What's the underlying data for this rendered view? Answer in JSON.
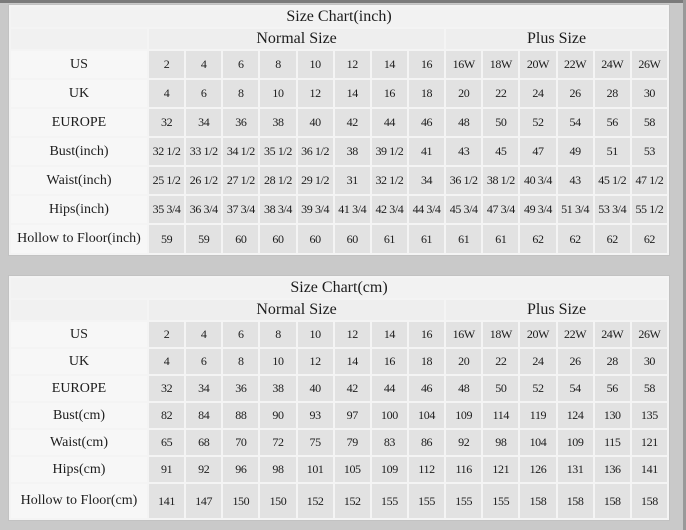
{
  "page": {
    "background_color": "#c9c9c9",
    "frame_line_color": "#7b7b7b",
    "label_cell_color": "#f7f7f7",
    "data_cell_color": "#e2e2e2"
  },
  "chart_data": [
    {
      "type": "table",
      "title": "Size Chart(inch)",
      "column_groups": [
        {
          "label": "Normal Size",
          "span": 8
        },
        {
          "label": "Plus Size",
          "span": 6
        }
      ],
      "rows": [
        {
          "label": "US",
          "values": [
            "2",
            "4",
            "6",
            "8",
            "10",
            "12",
            "14",
            "16",
            "16W",
            "18W",
            "20W",
            "22W",
            "24W",
            "26W"
          ]
        },
        {
          "label": "UK",
          "values": [
            "4",
            "6",
            "8",
            "10",
            "12",
            "14",
            "16",
            "18",
            "20",
            "22",
            "24",
            "26",
            "28",
            "30"
          ]
        },
        {
          "label": "EUROPE",
          "values": [
            "32",
            "34",
            "36",
            "38",
            "40",
            "42",
            "44",
            "46",
            "48",
            "50",
            "52",
            "54",
            "56",
            "58"
          ]
        },
        {
          "label": "Bust(inch)",
          "values": [
            "32 1/2",
            "33 1/2",
            "34 1/2",
            "35 1/2",
            "36 1/2",
            "38",
            "39 1/2",
            "41",
            "43",
            "45",
            "47",
            "49",
            "51",
            "53"
          ]
        },
        {
          "label": "Waist(inch)",
          "values": [
            "25 1/2",
            "26 1/2",
            "27 1/2",
            "28 1/2",
            "29 1/2",
            "31",
            "32 1/2",
            "34",
            "36 1/2",
            "38 1/2",
            "40 3/4",
            "43",
            "45 1/2",
            "47 1/2"
          ]
        },
        {
          "label": "Hips(inch)",
          "values": [
            "35 3/4",
            "36 3/4",
            "37 3/4",
            "38 3/4",
            "39 3/4",
            "41 3/4",
            "42 3/4",
            "44 3/4",
            "45 3/4",
            "47 3/4",
            "49 3/4",
            "51 3/4",
            "53 3/4",
            "55 1/2"
          ]
        },
        {
          "label": "Hollow to Floor(inch)",
          "values": [
            "59",
            "59",
            "60",
            "60",
            "60",
            "60",
            "61",
            "61",
            "61",
            "61",
            "62",
            "62",
            "62",
            "62"
          ]
        }
      ]
    },
    {
      "type": "table",
      "title": "Size Chart(cm)",
      "column_groups": [
        {
          "label": "Normal Size",
          "span": 8
        },
        {
          "label": "Plus Size",
          "span": 6
        }
      ],
      "rows": [
        {
          "label": "US",
          "values": [
            "2",
            "4",
            "6",
            "8",
            "10",
            "12",
            "14",
            "16",
            "16W",
            "18W",
            "20W",
            "22W",
            "24W",
            "26W"
          ]
        },
        {
          "label": "UK",
          "values": [
            "4",
            "6",
            "8",
            "10",
            "12",
            "14",
            "16",
            "18",
            "20",
            "22",
            "24",
            "26",
            "28",
            "30"
          ]
        },
        {
          "label": "EUROPE",
          "values": [
            "32",
            "34",
            "36",
            "38",
            "40",
            "42",
            "44",
            "46",
            "48",
            "50",
            "52",
            "54",
            "56",
            "58"
          ]
        },
        {
          "label": "Bust(cm)",
          "values": [
            "82",
            "84",
            "88",
            "90",
            "93",
            "97",
            "100",
            "104",
            "109",
            "114",
            "119",
            "124",
            "130",
            "135"
          ]
        },
        {
          "label": "Waist(cm)",
          "values": [
            "65",
            "68",
            "70",
            "72",
            "75",
            "79",
            "83",
            "86",
            "92",
            "98",
            "104",
            "109",
            "115",
            "121"
          ]
        },
        {
          "label": "Hips(cm)",
          "values": [
            "91",
            "92",
            "96",
            "98",
            "101",
            "105",
            "109",
            "112",
            "116",
            "121",
            "126",
            "131",
            "136",
            "141"
          ]
        },
        {
          "label": "Hollow to Floor(cm)",
          "values": [
            "141",
            "147",
            "150",
            "150",
            "152",
            "152",
            "155",
            "155",
            "155",
            "155",
            "158",
            "158",
            "158",
            "158"
          ]
        }
      ]
    }
  ]
}
